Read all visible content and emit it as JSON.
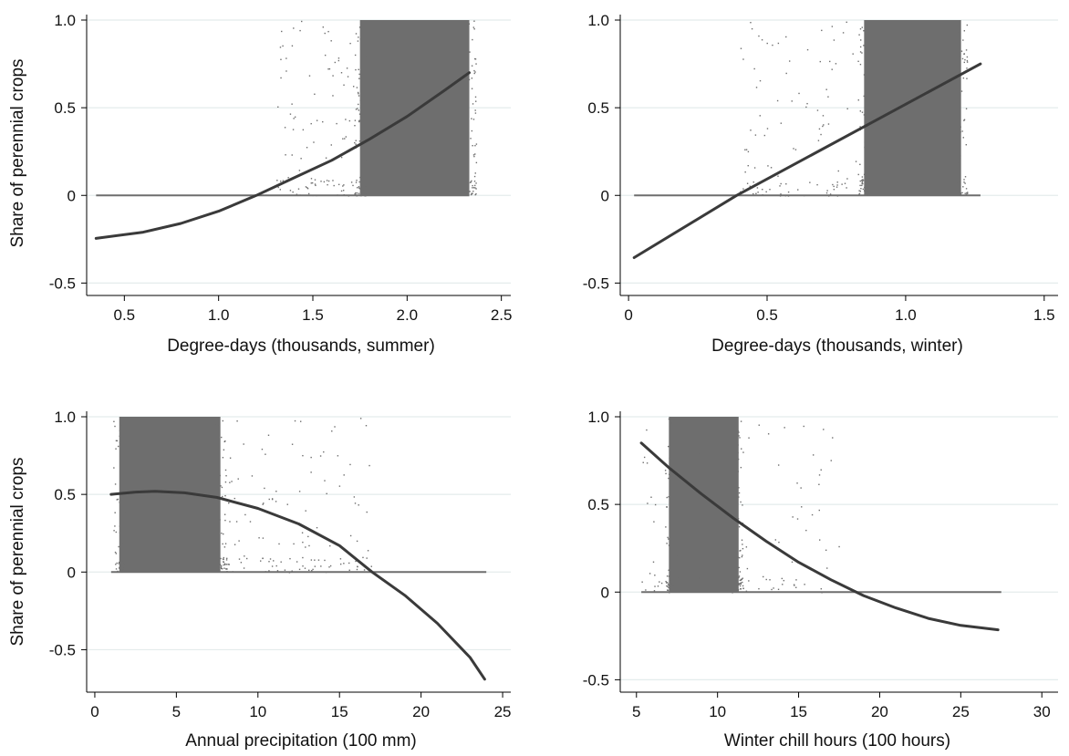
{
  "chart_data": [
    {
      "type": "scatter",
      "xlabel": "Degree-days (thousands, summer)",
      "ylabel": "Share of perennial crops",
      "xlim": [
        0.3,
        2.55
      ],
      "ylim": [
        -0.55,
        1.0
      ],
      "xticks": [
        0.5,
        1.0,
        1.5,
        2.0,
        2.5
      ],
      "xtick_labels": [
        "0.5",
        "1.0",
        "1.5",
        "2.0",
        "2.5"
      ],
      "yticks": [
        -0.5,
        0,
        0.5,
        1.0
      ],
      "ytick_labels": [
        "-0.5",
        "0",
        "0.5",
        "1.0"
      ],
      "grid": true,
      "scatter": {
        "color": "#6e6e6e",
        "dense_x_range": [
          1.75,
          2.33
        ],
        "zero_line_x_range": [
          0.35,
          2.33
        ],
        "sparse_x_range": [
          1.3,
          1.75
        ]
      },
      "fit": {
        "x": [
          0.35,
          0.6,
          0.8,
          1.0,
          1.2,
          1.4,
          1.6,
          1.8,
          2.0,
          2.2,
          2.33
        ],
        "y": [
          -0.245,
          -0.21,
          -0.16,
          -0.09,
          0.0,
          0.1,
          0.2,
          0.32,
          0.45,
          0.6,
          0.7
        ],
        "color": "#3a3a3a"
      }
    },
    {
      "type": "scatter",
      "xlabel": "Degree-days (thousands, winter)",
      "ylabel": "",
      "xlim": [
        -0.03,
        1.55
      ],
      "ylim": [
        -0.55,
        1.0
      ],
      "xticks": [
        0,
        0.5,
        1.0,
        1.5
      ],
      "xtick_labels": [
        "0",
        "0.5",
        "1.0",
        "1.5"
      ],
      "yticks": [
        -0.5,
        0,
        0.5,
        1.0
      ],
      "ytick_labels": [
        "-0.5",
        "0",
        "0.5",
        "1.0"
      ],
      "grid": true,
      "scatter": {
        "color": "#6e6e6e",
        "dense_x_range": [
          0.85,
          1.2
        ],
        "zero_line_x_range": [
          0.02,
          1.27
        ],
        "sparse_x_range": [
          0.4,
          0.85
        ]
      },
      "fit": {
        "x": [
          0.02,
          0.39,
          1.27
        ],
        "y": [
          -0.355,
          0.0,
          0.75
        ],
        "color": "#3a3a3a"
      }
    },
    {
      "type": "scatter",
      "xlabel": "Annual precipitation (100 mm)",
      "ylabel": "Share of perennial crops",
      "xlim": [
        -0.5,
        25.5
      ],
      "ylim": [
        -0.75,
        1.0
      ],
      "xticks": [
        0,
        5,
        10,
        15,
        20,
        25
      ],
      "xtick_labels": [
        "0",
        "5",
        "10",
        "15",
        "20",
        "25"
      ],
      "yticks": [
        -0.5,
        0,
        0.5,
        1.0
      ],
      "ytick_labels": [
        "-0.5",
        "0",
        "0.5",
        "1.0"
      ],
      "grid": true,
      "scatter": {
        "color": "#6e6e6e",
        "dense_x_range": [
          1.5,
          7.7
        ],
        "zero_line_x_range": [
          1.0,
          24.0
        ],
        "sparse_x_range": [
          7.7,
          17
        ]
      },
      "fit": {
        "x": [
          1.0,
          2.5,
          3.7,
          5.5,
          7.5,
          10,
          12.5,
          15,
          17,
          19,
          21,
          23,
          23.9
        ],
        "y": [
          0.5,
          0.515,
          0.52,
          0.51,
          0.48,
          0.41,
          0.31,
          0.17,
          0.0,
          -0.15,
          -0.33,
          -0.55,
          -0.69
        ],
        "color": "#3a3a3a"
      }
    },
    {
      "type": "scatter",
      "xlabel": "Winter chill hours (100 hours)",
      "ylabel": "",
      "xlim": [
        4.0,
        31.0
      ],
      "ylim": [
        -0.55,
        1.0
      ],
      "xticks": [
        5,
        10,
        15,
        20,
        25,
        30
      ],
      "xtick_labels": [
        "5",
        "10",
        "15",
        "20",
        "25",
        "30"
      ],
      "yticks": [
        -0.5,
        0,
        0.5,
        1.0
      ],
      "ytick_labels": [
        "-0.5",
        "0",
        "0.5",
        "1.0"
      ],
      "grid": true,
      "scatter": {
        "color": "#6e6e6e",
        "dense_x_range": [
          7.0,
          11.3
        ],
        "zero_line_x_range": [
          5.3,
          27.5
        ],
        "sparse_x_range": [
          5.0,
          17.5
        ]
      },
      "fit": {
        "x": [
          5.3,
          7,
          9,
          11,
          13,
          15,
          17,
          19,
          21,
          23,
          25,
          27.3
        ],
        "y": [
          0.85,
          0.71,
          0.56,
          0.42,
          0.29,
          0.17,
          0.07,
          -0.02,
          -0.09,
          -0.15,
          -0.19,
          -0.215
        ],
        "color": "#3a3a3a"
      }
    }
  ]
}
